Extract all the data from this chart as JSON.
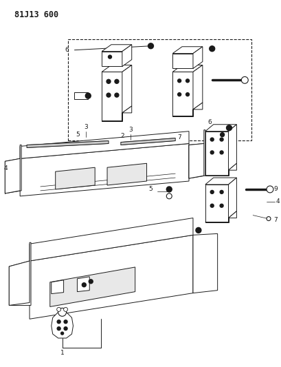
{
  "title": "81J13 600",
  "background_color": "#ffffff",
  "line_color": "#000000",
  "fig_width": 4.09,
  "fig_height": 5.33,
  "dpi": 100
}
